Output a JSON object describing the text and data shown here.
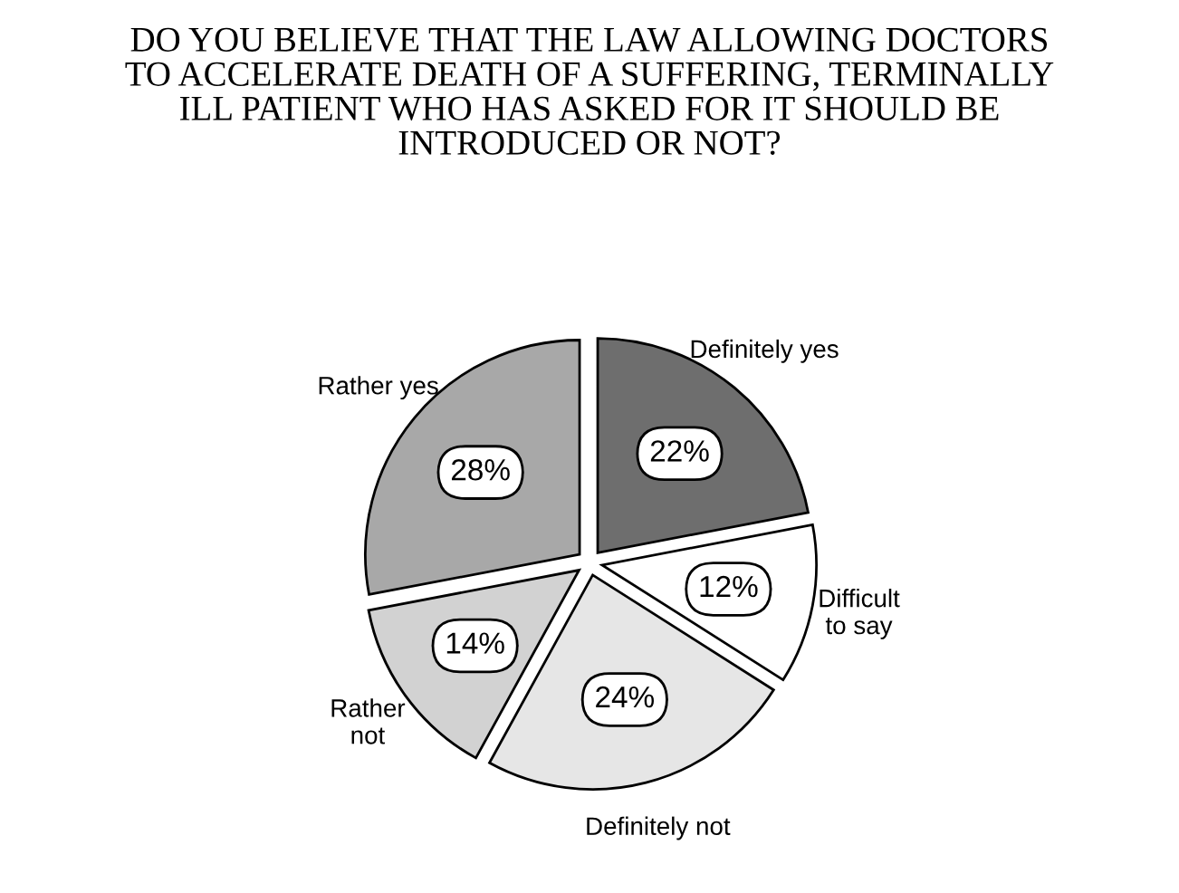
{
  "chart_data": {
    "type": "pie",
    "title": "DO YOU BELIEVE THAT THE LAW ALLOWING DOCTORS\nTO ACCELERATE DEATH OF A SUFFERING, TERMINALLY\nILL PATIENT WHO HAS ASKED FOR IT SHOULD BE\nINTRODUCED OR NOT?",
    "categories": [
      "Definitely yes",
      "Difficult\nto say",
      "Definitely not",
      "Rather\nnot",
      "Rather yes"
    ],
    "values": [
      22,
      12,
      24,
      14,
      28
    ],
    "value_labels": [
      "22%",
      "12%",
      "24%",
      "14%",
      "28%"
    ],
    "colors": [
      "#6e6e6e",
      "#ffffff",
      "#e6e6e6",
      "#d2d2d2",
      "#a8a8a8"
    ]
  }
}
